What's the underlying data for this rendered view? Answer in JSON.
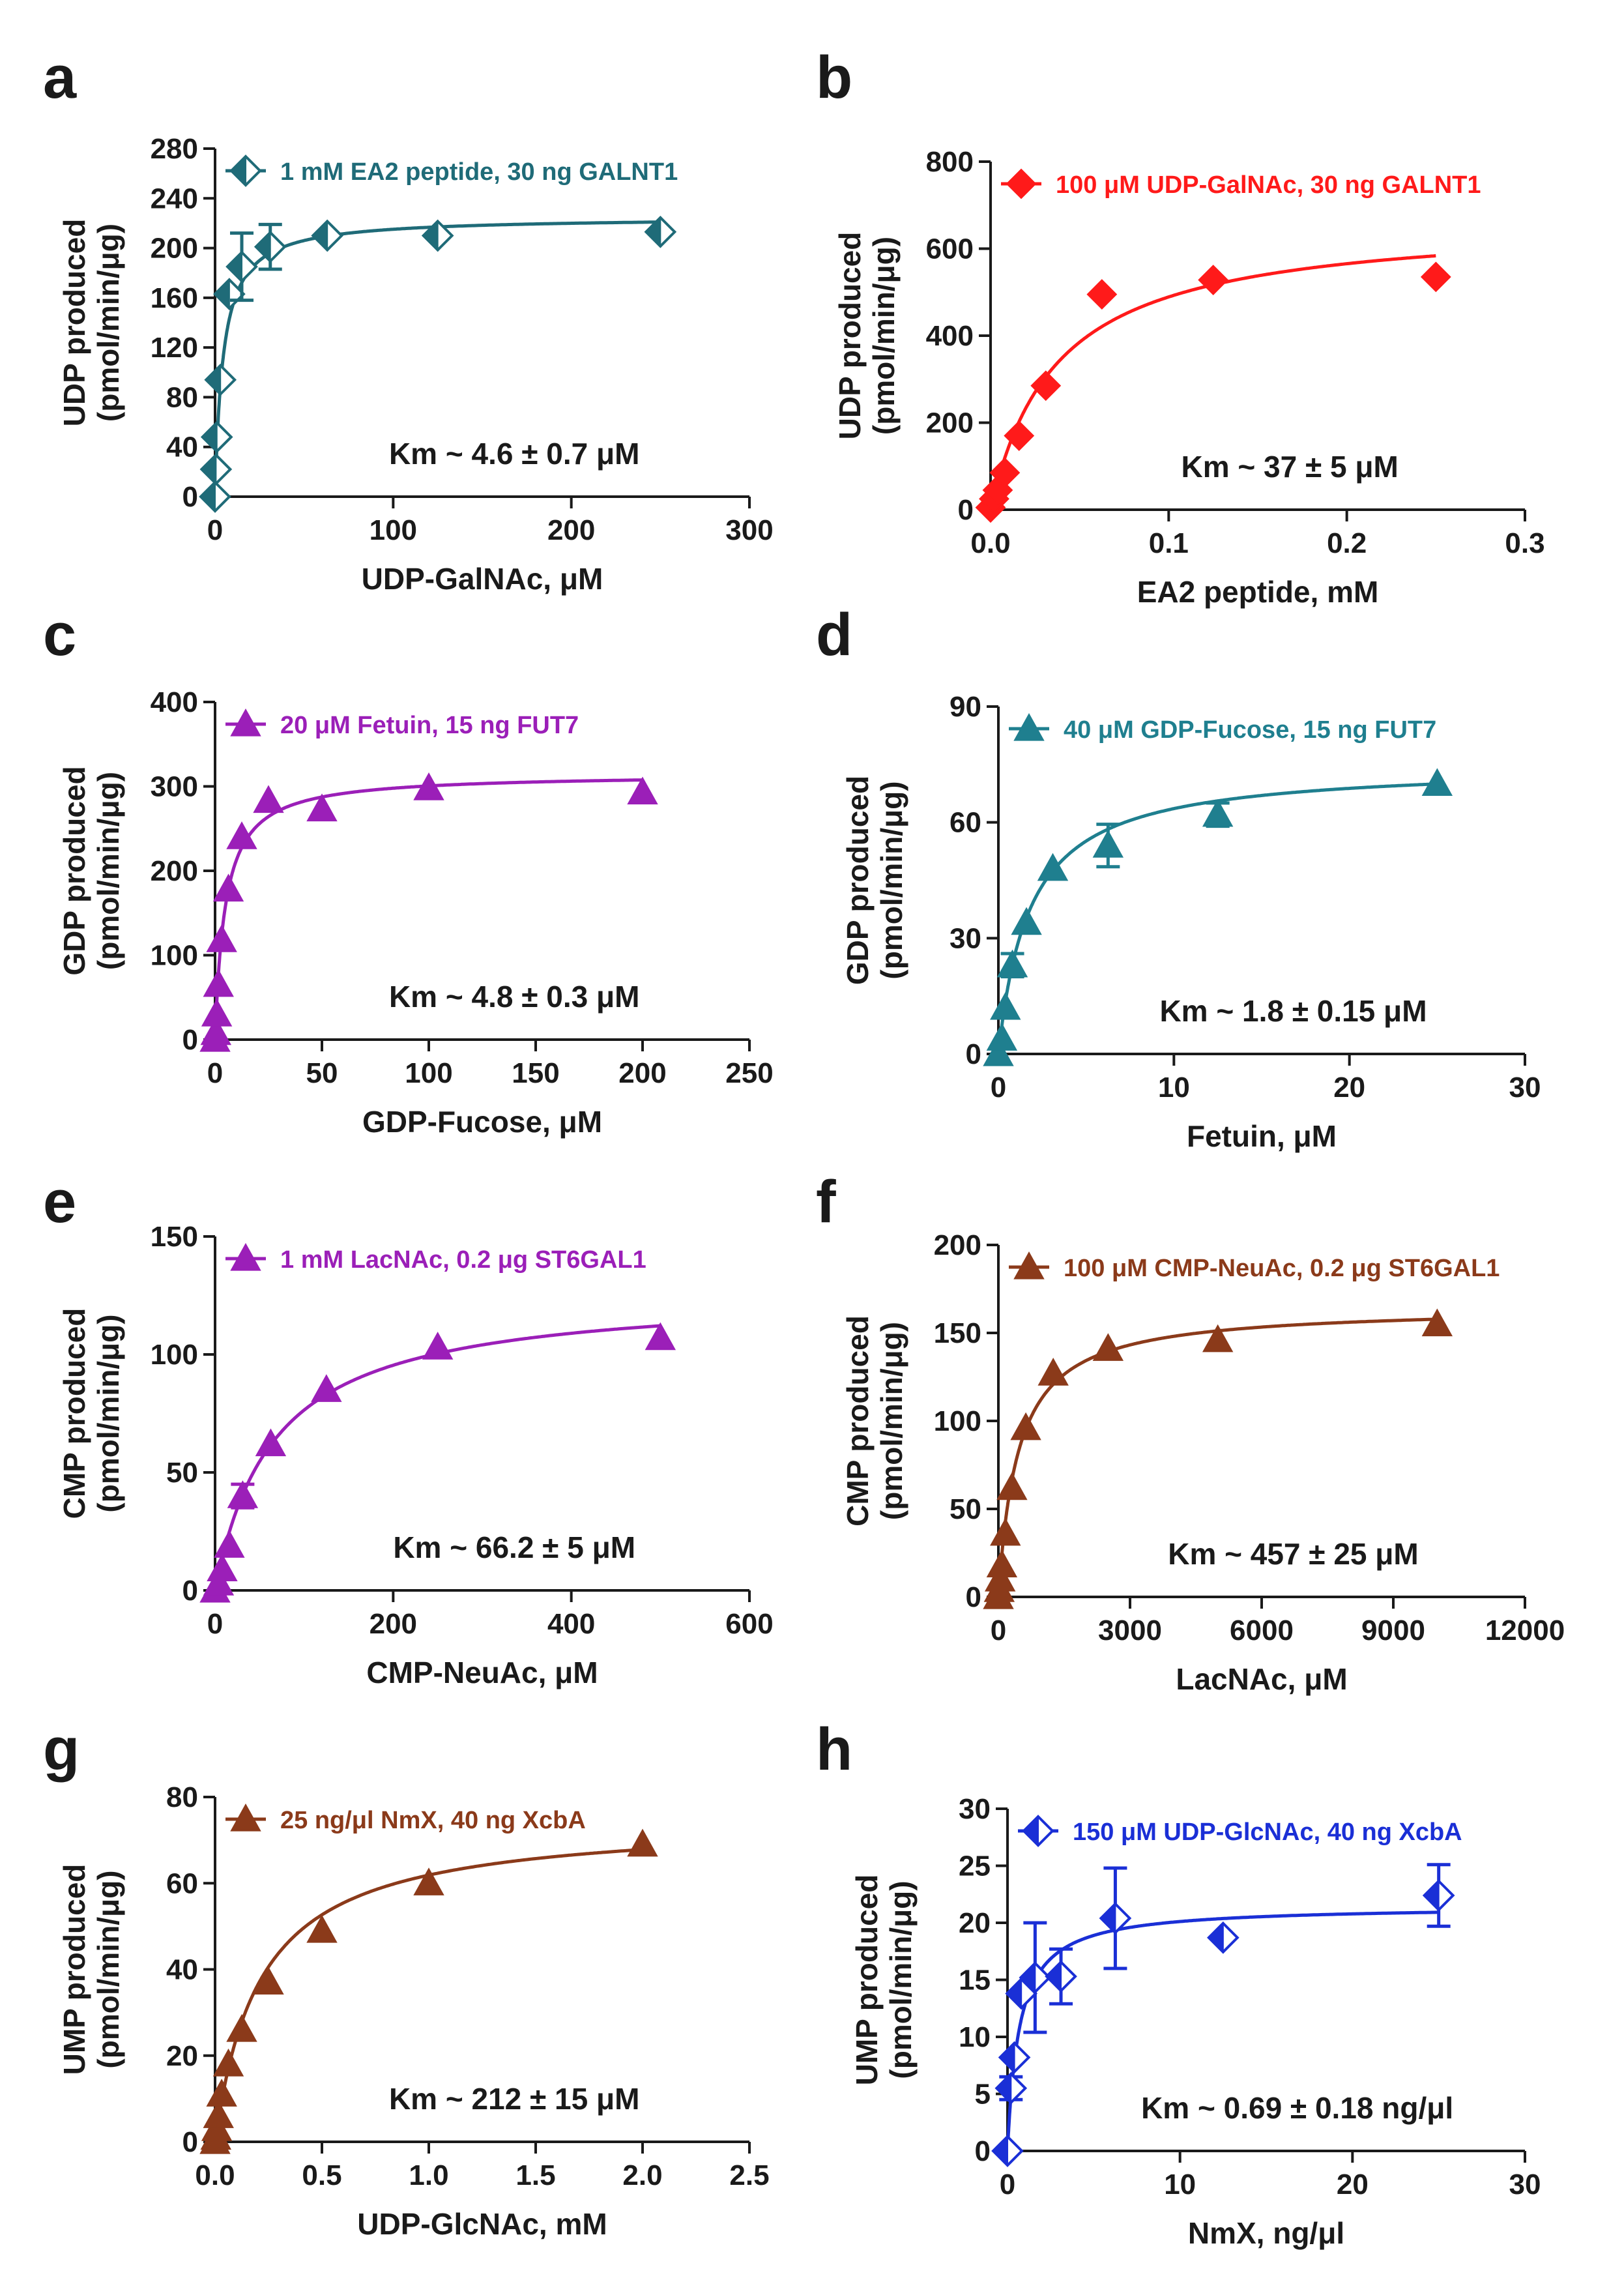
{
  "figure": {
    "panels": [
      "a",
      "b",
      "c",
      "d",
      "e",
      "f",
      "g",
      "h"
    ]
  },
  "chart_data": [
    {
      "panel": "a",
      "type": "scatter",
      "color": "#1f6b78",
      "marker": "diamond-half",
      "legend": "1 mM EA2 peptide, 30 ng GALNT1",
      "annotation": "Km ~ 4.6 ± 0.7 μM",
      "xlabel": "UDP-GalNAc, μM",
      "ylabel": [
        "UDP produced",
        "(pmol/min/μg)"
      ],
      "xlim": [
        0,
        300
      ],
      "ylim": [
        0,
        280
      ],
      "xticks": [
        0,
        100,
        200,
        300
      ],
      "yticks": [
        0,
        40,
        80,
        120,
        160,
        200,
        240,
        280
      ],
      "xticklabels": [
        "0",
        "100",
        "200",
        "300"
      ],
      "yticklabels": [
        "0",
        "40",
        "80",
        "120",
        "160",
        "200",
        "240",
        "280"
      ],
      "fit": {
        "vmax": 225,
        "km": 4.6
      },
      "points": [
        {
          "x": 0,
          "y": 0
        },
        {
          "x": 0.5,
          "y": 22
        },
        {
          "x": 1,
          "y": 48
        },
        {
          "x": 3,
          "y": 94
        },
        {
          "x": 8,
          "y": 163
        },
        {
          "x": 15,
          "y": 185,
          "err": 27
        },
        {
          "x": 31,
          "y": 201,
          "err": 18
        },
        {
          "x": 63,
          "y": 210
        },
        {
          "x": 125,
          "y": 210
        },
        {
          "x": 250,
          "y": 213
        }
      ]
    },
    {
      "panel": "b",
      "type": "scatter",
      "color": "#ff1a1a",
      "marker": "diamond",
      "legend": "100 μM UDP-GalNAc, 30 ng GALNT1",
      "annotation": "Km ~ 37 ± 5 μM",
      "xlabel": "EA2 peptide, mM",
      "ylabel": [
        "UDP produced",
        "(pmol/min/μg)"
      ],
      "xlim": [
        0,
        0.3
      ],
      "ylim": [
        0,
        800
      ],
      "xticks": [
        0,
        0.1,
        0.2,
        0.3
      ],
      "yticks": [
        0,
        200,
        400,
        600,
        800
      ],
      "xticklabels": [
        "0.0",
        "0.1",
        "0.2",
        "0.3"
      ],
      "yticklabels": [
        "0",
        "200",
        "400",
        "600",
        "800"
      ],
      "fit": {
        "vmax": 670,
        "km": 0.037
      },
      "points": [
        {
          "x": 0,
          "y": 5
        },
        {
          "x": 0.002,
          "y": 25
        },
        {
          "x": 0.004,
          "y": 45
        },
        {
          "x": 0.008,
          "y": 85
        },
        {
          "x": 0.016,
          "y": 170
        },
        {
          "x": 0.031,
          "y": 285
        },
        {
          "x": 0.0625,
          "y": 495
        },
        {
          "x": 0.125,
          "y": 528
        },
        {
          "x": 0.25,
          "y": 535
        }
      ]
    },
    {
      "panel": "c",
      "type": "scatter",
      "color": "#9b1fb8",
      "marker": "triangle",
      "legend": "20 μM Fetuin, 15 ng FUT7",
      "annotation": "Km ~ 4.8 ± 0.3 μM",
      "xlabel": "GDP-Fucose, μM",
      "ylabel": [
        "GDP produced",
        "(pmol/min/μg)"
      ],
      "xlim": [
        0,
        250
      ],
      "ylim": [
        0,
        400
      ],
      "xticks": [
        0,
        50,
        100,
        150,
        200,
        250
      ],
      "yticks": [
        0,
        100,
        200,
        300,
        400
      ],
      "xticklabels": [
        "0",
        "50",
        "100",
        "150",
        "200",
        "250"
      ],
      "yticklabels": [
        "0",
        "100",
        "200",
        "300",
        "400"
      ],
      "fit": {
        "vmax": 315,
        "km": 4.8
      },
      "points": [
        {
          "x": 0,
          "y": 0
        },
        {
          "x": 0.4,
          "y": 8
        },
        {
          "x": 0.8,
          "y": 30
        },
        {
          "x": 1.6,
          "y": 65
        },
        {
          "x": 3.1,
          "y": 118
        },
        {
          "x": 6.25,
          "y": 178
        },
        {
          "x": 12.5,
          "y": 240
        },
        {
          "x": 25,
          "y": 283
        },
        {
          "x": 50,
          "y": 273
        },
        {
          "x": 100,
          "y": 298
        },
        {
          "x": 200,
          "y": 293
        }
      ]
    },
    {
      "panel": "d",
      "type": "scatter",
      "color": "#1f7f8f",
      "marker": "triangle",
      "legend": "40 μM GDP-Fucose, 15 ng FUT7",
      "annotation": "Km ~ 1.8 ± 0.15 μM",
      "xlabel": "Fetuin, μM",
      "ylabel": [
        "GDP produced",
        "(pmol/min/μg)"
      ],
      "xlim": [
        0,
        30
      ],
      "ylim": [
        0,
        90
      ],
      "xticks": [
        0,
        10,
        20,
        30
      ],
      "yticks": [
        0,
        30,
        60,
        90
      ],
      "xticklabels": [
        "0",
        "10",
        "20",
        "30"
      ],
      "yticklabels": [
        "0",
        "30",
        "60",
        "90"
      ],
      "fit": {
        "vmax": 75,
        "km": 1.8
      },
      "points": [
        {
          "x": 0,
          "y": 0
        },
        {
          "x": 0.2,
          "y": 4
        },
        {
          "x": 0.4,
          "y": 12
        },
        {
          "x": 0.8,
          "y": 23,
          "err": 3
        },
        {
          "x": 1.6,
          "y": 34
        },
        {
          "x": 3.1,
          "y": 48
        },
        {
          "x": 6.25,
          "y": 54,
          "err": 5.5
        },
        {
          "x": 12.5,
          "y": 62,
          "err": 3
        },
        {
          "x": 25,
          "y": 70
        }
      ]
    },
    {
      "panel": "e",
      "type": "scatter",
      "color": "#9b1fb8",
      "marker": "triangle",
      "legend": "1 mM LacNAc, 0.2 μg ST6GAL1",
      "annotation": "Km ~ 66.2 ± 5 μM",
      "xlabel": "CMP-NeuAc, μM",
      "ylabel": [
        "CMP produced",
        "(pmol/min/μg)"
      ],
      "xlim": [
        0,
        600
      ],
      "ylim": [
        0,
        150
      ],
      "xticks": [
        0,
        200,
        400,
        600
      ],
      "yticks": [
        0,
        50,
        100,
        150
      ],
      "xticklabels": [
        "0",
        "200",
        "400",
        "600"
      ],
      "yticklabels": [
        "0",
        "50",
        "100",
        "150"
      ],
      "fit": {
        "vmax": 127,
        "km": 66.2
      },
      "points": [
        {
          "x": 0,
          "y": 0
        },
        {
          "x": 4,
          "y": 3
        },
        {
          "x": 8,
          "y": 9
        },
        {
          "x": 16,
          "y": 19
        },
        {
          "x": 31,
          "y": 40,
          "err": 5
        },
        {
          "x": 62.5,
          "y": 62
        },
        {
          "x": 125,
          "y": 85
        },
        {
          "x": 250,
          "y": 103
        },
        {
          "x": 500,
          "y": 107
        }
      ]
    },
    {
      "panel": "f",
      "type": "scatter",
      "color": "#8b3a1a",
      "marker": "triangle",
      "legend": "100 μM CMP-NeuAc, 0.2 μg ST6GAL1",
      "annotation": "Km ~ 457 ± 25 μM",
      "xlabel": "LacNAc, μM",
      "ylabel": [
        "CMP produced",
        "(pmol/min/μg)"
      ],
      "xlim": [
        0,
        12000
      ],
      "ylim": [
        0,
        200
      ],
      "xticks": [
        0,
        3000,
        6000,
        9000,
        12000
      ],
      "yticks": [
        0,
        50,
        100,
        150,
        200
      ],
      "xticklabels": [
        "0",
        "3000",
        "6000",
        "9000",
        "12000"
      ],
      "yticklabels": [
        "0",
        "50",
        "100",
        "150",
        "200"
      ],
      "fit": {
        "vmax": 165,
        "km": 457
      },
      "points": [
        {
          "x": 0,
          "y": 0
        },
        {
          "x": 20,
          "y": 4
        },
        {
          "x": 40,
          "y": 10
        },
        {
          "x": 80,
          "y": 18
        },
        {
          "x": 160,
          "y": 36
        },
        {
          "x": 310,
          "y": 62
        },
        {
          "x": 625,
          "y": 96
        },
        {
          "x": 1250,
          "y": 127
        },
        {
          "x": 2500,
          "y": 141
        },
        {
          "x": 5000,
          "y": 146
        },
        {
          "x": 10000,
          "y": 155
        }
      ]
    },
    {
      "panel": "g",
      "type": "scatter",
      "color": "#8b3a1a",
      "marker": "triangle",
      "legend": "25 ng/μl NmX, 40 ng XcbA",
      "annotation": "Km ~ 212 ± 15 μM",
      "xlabel": "UDP-GlcNAc, mM",
      "ylabel": [
        "UMP produced",
        "(pmol/min/μg)"
      ],
      "xlim": [
        0,
        2.5
      ],
      "ylim": [
        0,
        80
      ],
      "xticks": [
        0,
        0.5,
        1.0,
        1.5,
        2.0,
        2.5
      ],
      "yticks": [
        0,
        20,
        40,
        60,
        80
      ],
      "xticklabels": [
        "0.0",
        "0.5",
        "1.0",
        "1.5",
        "2.0",
        "2.5"
      ],
      "yticklabels": [
        "0",
        "20",
        "40",
        "60",
        "80"
      ],
      "fit": {
        "vmax": 75,
        "km": 0.212
      },
      "points": [
        {
          "x": 0,
          "y": 0
        },
        {
          "x": 0.004,
          "y": 1
        },
        {
          "x": 0.008,
          "y": 3
        },
        {
          "x": 0.016,
          "y": 6
        },
        {
          "x": 0.031,
          "y": 11
        },
        {
          "x": 0.0625,
          "y": 18
        },
        {
          "x": 0.125,
          "y": 26
        },
        {
          "x": 0.25,
          "y": 37
        },
        {
          "x": 0.5,
          "y": 49
        },
        {
          "x": 1.0,
          "y": 60
        },
        {
          "x": 2.0,
          "y": 69
        }
      ]
    },
    {
      "panel": "h",
      "type": "scatter",
      "color": "#1a2fd6",
      "marker": "diamond-half",
      "legend": "150 μM UDP-GlcNAc, 40 ng XcbA",
      "annotation": "Km ~ 0.69 ± 0.18 ng/μl",
      "xlabel": "NmX, ng/μl",
      "ylabel": [
        "UMP produced",
        "(pmol/min/μg)"
      ],
      "xlim": [
        0,
        30
      ],
      "ylim": [
        0,
        30
      ],
      "xticks": [
        0,
        10,
        20,
        30
      ],
      "yticks": [
        0,
        5,
        10,
        15,
        20,
        25,
        30
      ],
      "xticklabels": [
        "0",
        "10",
        "20",
        "30"
      ],
      "yticklabels": [
        "0",
        "5",
        "10",
        "15",
        "20",
        "25",
        "30"
      ],
      "fit": {
        "vmax": 21.5,
        "km": 0.69
      },
      "points": [
        {
          "x": 0,
          "y": 0
        },
        {
          "x": 0.2,
          "y": 5.5,
          "err": 1
        },
        {
          "x": 0.4,
          "y": 8.2
        },
        {
          "x": 0.8,
          "y": 13.8
        },
        {
          "x": 1.6,
          "y": 15.2,
          "err": 4.8
        },
        {
          "x": 3.1,
          "y": 15.3,
          "err": 2.4
        },
        {
          "x": 6.25,
          "y": 20.4,
          "err": 4.4
        },
        {
          "x": 12.5,
          "y": 18.7
        },
        {
          "x": 25,
          "y": 22.4,
          "err": 2.7
        }
      ]
    }
  ]
}
